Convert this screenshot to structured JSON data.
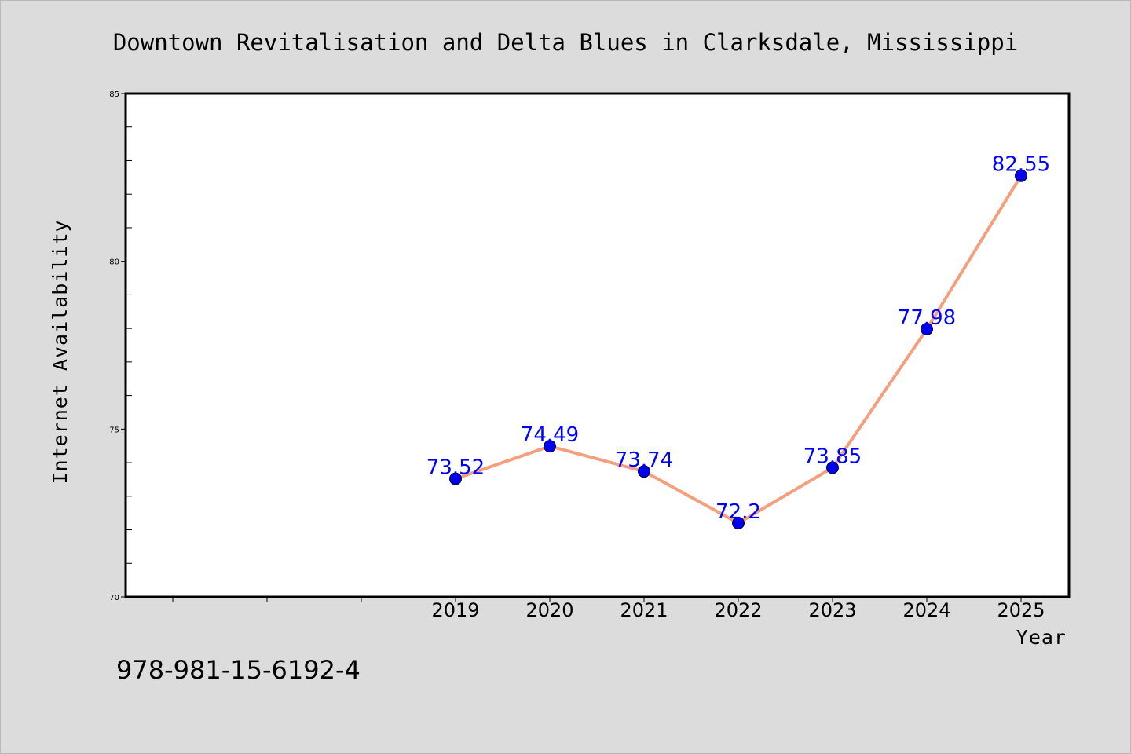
{
  "chart_data": {
    "type": "line",
    "title": "Downtown Revitalisation and Delta Blues in Clarksdale, Mississippi",
    "xlabel": "Year",
    "ylabel": "Internet Availability",
    "x": [
      "2019",
      "2020",
      "2021",
      "2022",
      "2023",
      "2024",
      "2025"
    ],
    "series": [
      {
        "values": [
          73.52,
          74.49,
          73.74,
          72.2,
          73.85,
          77.98,
          82.55
        ],
        "labels": [
          "73.52",
          "74.49",
          "73.74",
          "72.2",
          "73.85",
          "77.98",
          "82.55"
        ]
      }
    ],
    "ylim": [
      70,
      85
    ],
    "yticks": [
      70,
      75,
      80,
      85
    ],
    "ytick_labels": [
      "70",
      "75",
      "80",
      "85"
    ],
    "grid": false,
    "legend": "none",
    "colors": {
      "line": "#f4a07e",
      "marker": "#0000ee",
      "data_label": "#0000ff",
      "plot_background": "#ffffff",
      "figure_background": "#dcdcdc"
    }
  },
  "footnote": "978-981-15-6192-4"
}
